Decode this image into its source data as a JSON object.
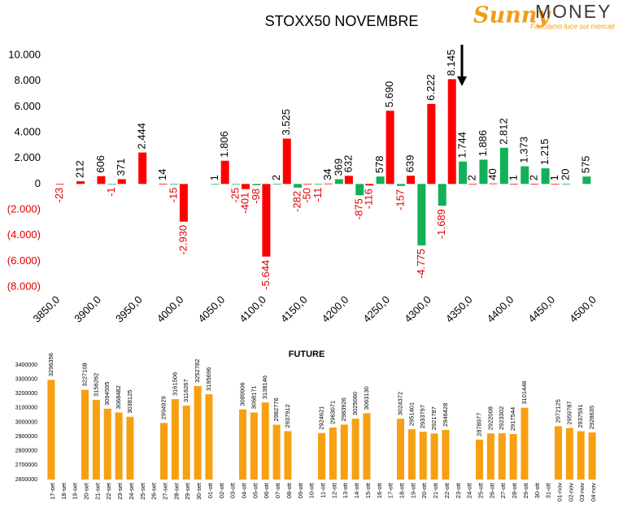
{
  "logo": {
    "brand": "Sunny",
    "name": "MONEY",
    "tagline": "Facciamo luce sui mercati"
  },
  "chart_data": [
    {
      "type": "bar",
      "title": "STOXX50 NOVEMBRE",
      "x": [
        3850,
        3875,
        3900,
        3925,
        3950,
        3975,
        4000,
        4025,
        4050,
        4075,
        4100,
        4125,
        4150,
        4175,
        4200,
        4225,
        4250,
        4275,
        4300,
        4325,
        4350,
        4375,
        4400,
        4425,
        4450,
        4475,
        4500
      ],
      "xlim": [
        3837.5,
        4512.5
      ],
      "xticks": [
        {
          "value": 3850,
          "label": "3850,0"
        },
        {
          "value": 3900,
          "label": "3900,0"
        },
        {
          "value": 3950,
          "label": "3950,0"
        },
        {
          "value": 4000,
          "label": "4000,0"
        },
        {
          "value": 4050,
          "label": "4050,0"
        },
        {
          "value": 4100,
          "label": "4100,0"
        },
        {
          "value": 4150,
          "label": "4150,0"
        },
        {
          "value": 4200,
          "label": "4200,0"
        },
        {
          "value": 4250,
          "label": "4250,0"
        },
        {
          "value": 4300,
          "label": "4300,0"
        },
        {
          "value": 4350,
          "label": "4350,0"
        },
        {
          "value": 4400,
          "label": "4400,0"
        },
        {
          "value": 4450,
          "label": "4450,0"
        },
        {
          "value": 4500,
          "label": "4500,0"
        }
      ],
      "ylim": [
        -8000,
        10000
      ],
      "yticks": [
        {
          "value": 10000,
          "label": "10.000"
        },
        {
          "value": 8000,
          "label": "8.000"
        },
        {
          "value": 6000,
          "label": "6.000"
        },
        {
          "value": 4000,
          "label": "4.000"
        },
        {
          "value": 2000,
          "label": "2.000"
        },
        0,
        {
          "value": -2000,
          "label": "(2.000)"
        },
        {
          "value": -4000,
          "label": "(4.000)"
        },
        {
          "value": -6000,
          "label": "(6.000)"
        },
        {
          "value": -8000,
          "label": "(8.000)"
        }
      ],
      "series": [
        {
          "color": "#12b159",
          "values": [
            null,
            null,
            null,
            -1,
            null,
            null,
            -15,
            null,
            1,
            -25,
            -98,
            2,
            -282,
            -11,
            369,
            -875,
            578,
            -157,
            -4775,
            -1689,
            1744,
            1886,
            2812,
            1373,
            1215,
            20,
            575
          ],
          "value_labels": [
            null,
            null,
            null,
            "-1",
            null,
            null,
            "-15",
            null,
            "1",
            "-25",
            "-98",
            "2",
            "-282",
            "-11",
            "369",
            "-875",
            "578",
            "-157",
            "-4.775",
            "-1.689",
            "1.744",
            "1.886",
            "2.812",
            "1.373",
            "1.215",
            "20",
            "575"
          ]
        },
        {
          "color": "#ff0000",
          "values": [
            -23,
            212,
            606,
            371,
            2444,
            14,
            -2930,
            null,
            1806,
            -401,
            -5644,
            3525,
            -50,
            34,
            632,
            -116,
            5690,
            639,
            6222,
            8145,
            2,
            40,
            1,
            2,
            1,
            null,
            null
          ],
          "value_labels": [
            "-23",
            "212",
            "606",
            "371",
            "2.444",
            "14",
            "-2.930",
            null,
            "1.806",
            "-401",
            "-5.644",
            "3.525",
            "-50",
            "34",
            "632",
            "-116",
            "5.690",
            "639",
            "6.222",
            "8.145",
            "2",
            "40",
            "1",
            "2",
            "1",
            null,
            null
          ]
        }
      ]
    },
    {
      "type": "bar",
      "title": "FUTURE",
      "categories": [
        "17-set",
        "18-set",
        "19-set",
        "20-set",
        "21-set",
        "22-set",
        "23-set",
        "24-set",
        "25-set",
        "26-set",
        "27-set",
        "28-set",
        "29-set",
        "30-set",
        "01-ott",
        "02-ott",
        "03-ott",
        "04-ott",
        "05-ott",
        "06-ott",
        "07-ott",
        "08-ott",
        "09-ott",
        "10-ott",
        "11-ott",
        "12-ott",
        "13-ott",
        "14-ott",
        "15-ott",
        "16-ott",
        "17-ott",
        "18-ott",
        "19-ott",
        "20-ott",
        "21-ott",
        "22-ott",
        "23-ott",
        "24-ott",
        "25-ott",
        "26-ott",
        "27-ott",
        "28-ott",
        "29-ott",
        "30-ott",
        "31-ott",
        "01-nov",
        "02-nov",
        "03-nov",
        "04-nov"
      ],
      "series": [
        {
          "color": "#f7a012",
          "values": [
            3296356,
            null,
            null,
            3227108,
            3156262,
            3094595,
            3068482,
            3038125,
            null,
            null,
            2994929,
            3161506,
            3116267,
            3252782,
            3195696,
            null,
            null,
            3089906,
            3068171,
            3138146,
            2982776,
            2937912,
            null,
            null,
            2924621,
            2963071,
            2983926,
            3025060,
            3063130,
            null,
            null,
            3024372,
            2951401,
            2933797,
            2921787,
            2946428,
            null,
            null,
            2878977,
            2922008,
            2923302,
            2917544,
            3101446,
            null,
            null,
            2972125,
            2959787,
            2937591,
            2928635
          ]
        }
      ],
      "ylim": [
        2600000,
        3400000
      ],
      "yticks": [
        2600000,
        2700000,
        2800000,
        2900000,
        3000000,
        3100000,
        3200000,
        3300000,
        3400000
      ]
    }
  ]
}
